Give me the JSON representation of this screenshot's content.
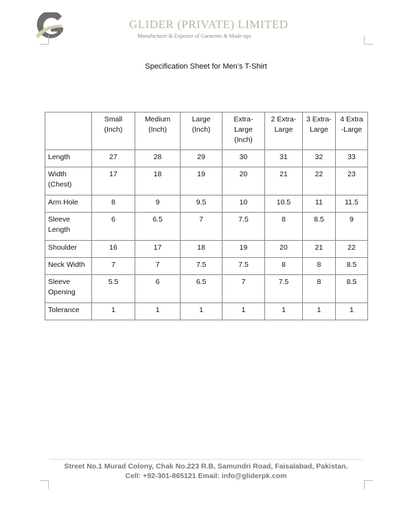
{
  "header": {
    "company": "GLIDER (PRIVATE) LIMITED",
    "tagline": "Manufacturer & Exporter of Garments & Made-ups",
    "logo_letter": "G"
  },
  "title": "Specification Sheet for Men’s T-Shirt",
  "table": {
    "columns": [
      "",
      "Small (Inch)",
      "Medium (Inch)",
      "Large (Inch)",
      "Extra-Large (Inch)",
      "2 Extra-Large",
      "3 Extra-Large",
      "4 Extra -Large"
    ],
    "rows": [
      {
        "label": "Length",
        "values": [
          "27",
          "28",
          "29",
          "30",
          "31",
          "32",
          "33"
        ]
      },
      {
        "label": "Width (Chest)",
        "values": [
          "17",
          "18",
          "19",
          "20",
          "21",
          "22",
          "23"
        ]
      },
      {
        "label": "Arm Hole",
        "values": [
          "8",
          "9",
          "9.5",
          "10",
          "10.5",
          "11",
          "11.5"
        ]
      },
      {
        "label": "Sleeve Length",
        "values": [
          "6",
          "6.5",
          "7",
          "7.5",
          "8",
          "8.5",
          "9"
        ]
      },
      {
        "label": "Shoulder",
        "values": [
          "16",
          "17",
          "18",
          "19",
          "20",
          "21",
          "22"
        ]
      },
      {
        "label": "Neck Width",
        "values": [
          "7",
          "7",
          "7.5",
          "7.5",
          "8",
          "8",
          "8.5"
        ]
      },
      {
        "label": "Sleeve Opening",
        "values": [
          "5.5",
          "6",
          "6.5",
          "7",
          "7.5",
          "8",
          "8.5"
        ]
      },
      {
        "label": "Tolerance",
        "values": [
          "1",
          "1",
          "1",
          "1",
          "1",
          "1",
          "1"
        ]
      }
    ]
  },
  "footer": {
    "address": "Street No.1 Murad Colony, Chak No.223 R.B, Samundri Road, Faisalabad, Pakistan.",
    "contact": "Cell: +92-301-865121 Email: info@gliderpk.com"
  }
}
